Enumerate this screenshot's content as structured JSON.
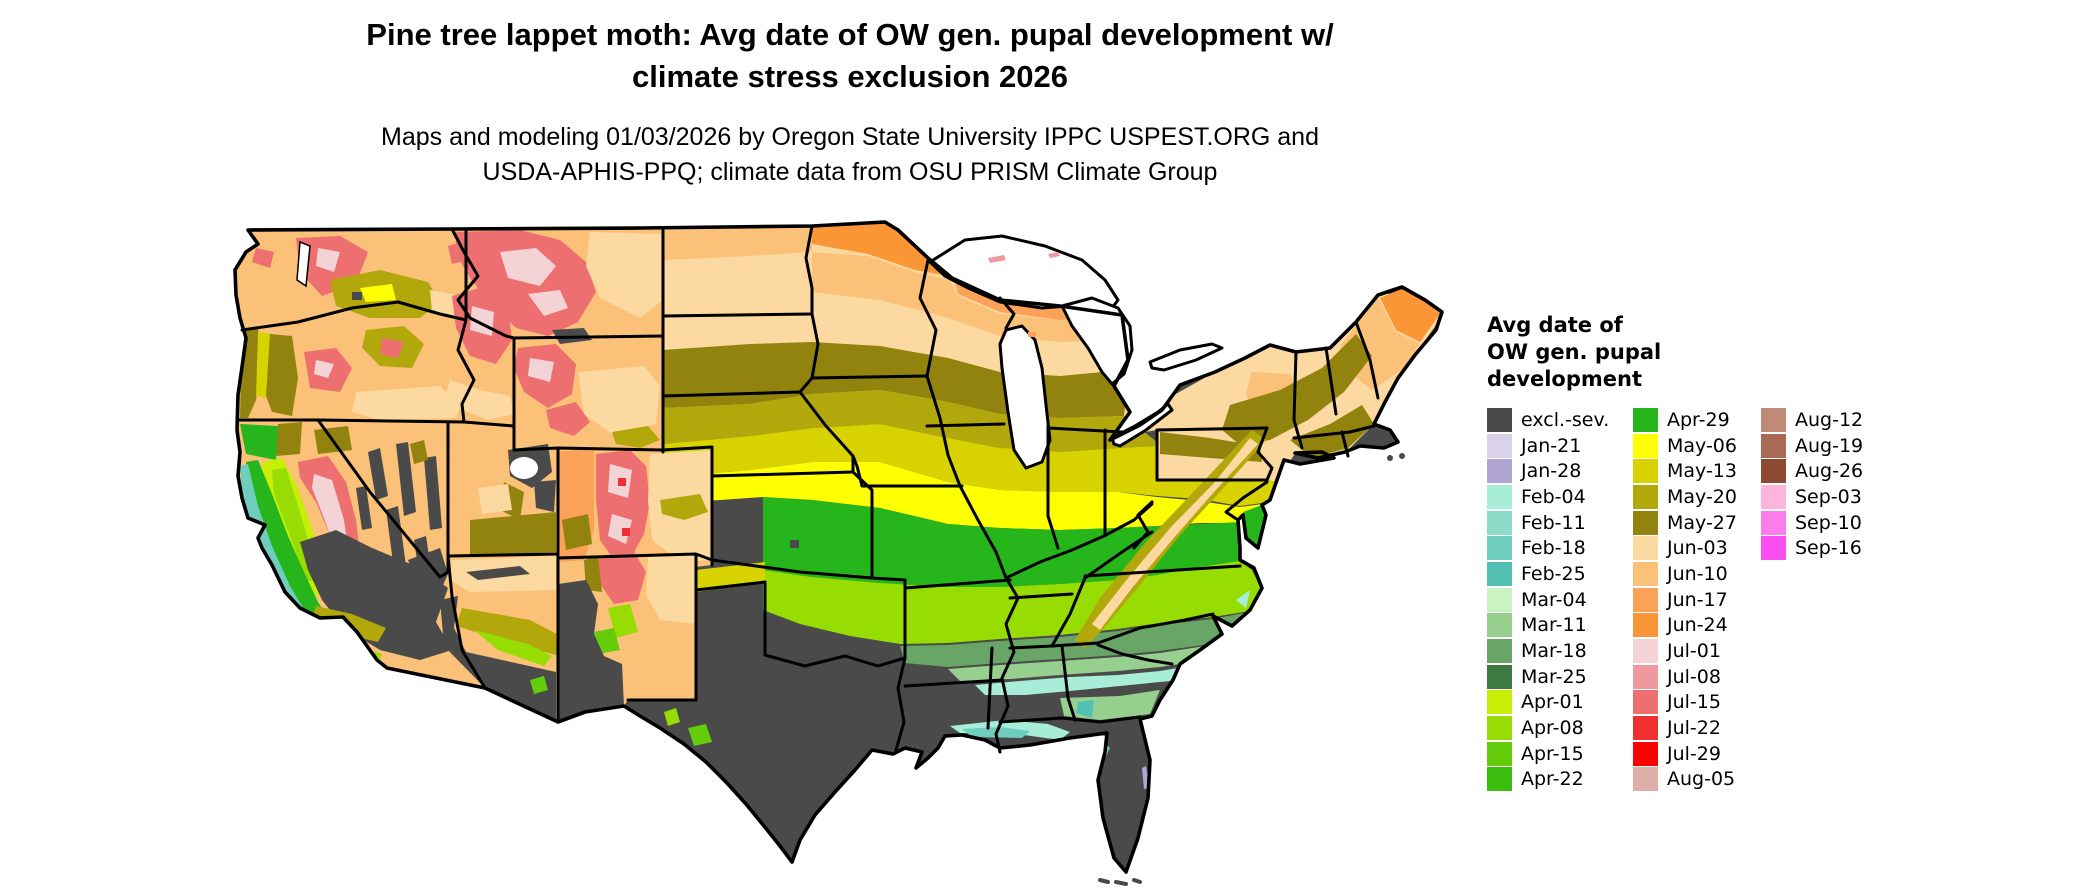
{
  "title": {
    "line1": "Pine tree lappet moth: Avg date of OW gen. pupal development w/",
    "line2": "climate stress exclusion 2026"
  },
  "subtitle": {
    "line1": "Maps and modeling 01/03/2026 by Oregon State University IPPC USPEST.ORG and",
    "line2": "USDA-APHIS-PPQ; climate data from OSU PRISM Climate Group"
  },
  "legend": {
    "title_lines": [
      "Avg date of",
      "OW gen. pupal",
      "development"
    ],
    "columns": [
      [
        {
          "label": "excl.-sev.",
          "color": "#4a4a4a"
        },
        {
          "label": "Jan-21",
          "color": "#d9d2e9"
        },
        {
          "label": "Jan-28",
          "color": "#b1a6d3"
        },
        {
          "label": "Feb-04",
          "color": "#a7edd8"
        },
        {
          "label": "Feb-11",
          "color": "#8edcc8"
        },
        {
          "label": "Feb-18",
          "color": "#6fcdbe"
        },
        {
          "label": "Feb-25",
          "color": "#51c0b2"
        },
        {
          "label": "Mar-04",
          "color": "#c9f3c0"
        },
        {
          "label": "Mar-11",
          "color": "#96cf8e"
        },
        {
          "label": "Mar-18",
          "color": "#69a567"
        },
        {
          "label": "Mar-25",
          "color": "#3d7a41"
        },
        {
          "label": "Apr-01",
          "color": "#c8ee08"
        },
        {
          "label": "Apr-08",
          "color": "#97dd04"
        },
        {
          "label": "Apr-15",
          "color": "#64cc0a"
        },
        {
          "label": "Apr-22",
          "color": "#3bbd0e"
        }
      ],
      [
        {
          "label": "Apr-29",
          "color": "#27b51c"
        },
        {
          "label": "May-06",
          "color": "#feff00"
        },
        {
          "label": "May-13",
          "color": "#d8d300"
        },
        {
          "label": "May-20",
          "color": "#b3a80b"
        },
        {
          "label": "May-27",
          "color": "#91830e"
        },
        {
          "label": "Jun-03",
          "color": "#fcd9a0"
        },
        {
          "label": "Jun-10",
          "color": "#fcc179"
        },
        {
          "label": "Jun-17",
          "color": "#fba158"
        },
        {
          "label": "Jun-24",
          "color": "#fb9637"
        },
        {
          "label": "Jul-01",
          "color": "#f3d3d6"
        },
        {
          "label": "Jul-08",
          "color": "#f0989f"
        },
        {
          "label": "Jul-15",
          "color": "#ee6f70"
        },
        {
          "label": "Jul-22",
          "color": "#f02f30"
        },
        {
          "label": "Jul-29",
          "color": "#fe0000"
        },
        {
          "label": "Aug-05",
          "color": "#dfb0a9"
        }
      ],
      [
        {
          "label": "Aug-12",
          "color": "#c08a79"
        },
        {
          "label": "Aug-19",
          "color": "#a96a55"
        },
        {
          "label": "Aug-26",
          "color": "#8c4a33"
        },
        {
          "label": "Sep-03",
          "color": "#fdb5de"
        },
        {
          "label": "Sep-10",
          "color": "#fc7ce9"
        },
        {
          "label": "Sep-16",
          "color": "#fd4ff1"
        }
      ]
    ]
  },
  "chart_data": {
    "type": "heatmap",
    "title": "Pine tree lappet moth: Avg date of OW gen. pupal development w/ climate stress exclusion 2026",
    "subtitle": "Maps and modeling 01/03/2026 by Oregon State University IPPC USPEST.ORG and USDA-APHIS-PPQ; climate data from OSU PRISM Climate Group",
    "legend_title": "Avg date of OW gen. pupal development",
    "legend_position": "right",
    "categories": [
      "excl.-sev.",
      "Jan-21",
      "Jan-28",
      "Feb-04",
      "Feb-11",
      "Feb-18",
      "Feb-25",
      "Mar-04",
      "Mar-11",
      "Mar-18",
      "Mar-25",
      "Apr-01",
      "Apr-08",
      "Apr-15",
      "Apr-22",
      "Apr-29",
      "May-06",
      "May-13",
      "May-20",
      "May-27",
      "Jun-03",
      "Jun-10",
      "Jun-17",
      "Jun-24",
      "Jul-01",
      "Jul-08",
      "Jul-15",
      "Jul-22",
      "Jul-29",
      "Aug-05",
      "Aug-12",
      "Aug-19",
      "Aug-26",
      "Sep-03",
      "Sep-10",
      "Sep-16"
    ],
    "colors": [
      "#4a4a4a",
      "#d9d2e9",
      "#b1a6d3",
      "#a7edd8",
      "#8edcc8",
      "#6fcdbe",
      "#51c0b2",
      "#c9f3c0",
      "#96cf8e",
      "#69a567",
      "#3d7a41",
      "#c8ee08",
      "#97dd04",
      "#64cc0a",
      "#3bbd0e",
      "#27b51c",
      "#feff00",
      "#d8d300",
      "#b3a80b",
      "#91830e",
      "#fcd9a0",
      "#fcc179",
      "#fba158",
      "#fb9637",
      "#f3d3d6",
      "#f0989f",
      "#ee6f70",
      "#f02f30",
      "#fe0000",
      "#dfb0a9",
      "#c08a79",
      "#a96a55",
      "#8c4a33",
      "#fdb5de",
      "#fc7ce9",
      "#fd4ff1"
    ],
    "region_values": {
      "Gulf Coast / Texas / Florida / desert Southwest": "excl.-sev.",
      "Carolinas-Georgia-Alabama-Mississippi coastal plain": "Feb-25 to Mar-18",
      "Tennessee / Arkansas / North Carolina": "Apr-01 to Apr-15",
      "Kentucky / Missouri / Virginia / Kansas-Oklahoma": "Apr-22 to Apr-29",
      "Ohio Valley / Illinois / Indiana / Maryland": "May-06",
      "Iowa / southern Great Lakes / Pennsylvania": "May-13 to May-27",
      "Dakotas / northern Great Lakes / New York / New England": "Jun-03 to Jun-10",
      "Northern Minnesota / upper Michigan / Maine": "Jun-17 to Jun-24",
      "Rocky Mountains / Sierra Nevada / Cascades": "Jul-01 to Jul-29",
      "Pacific coast strip": "Feb-04 to Feb-25"
    }
  }
}
